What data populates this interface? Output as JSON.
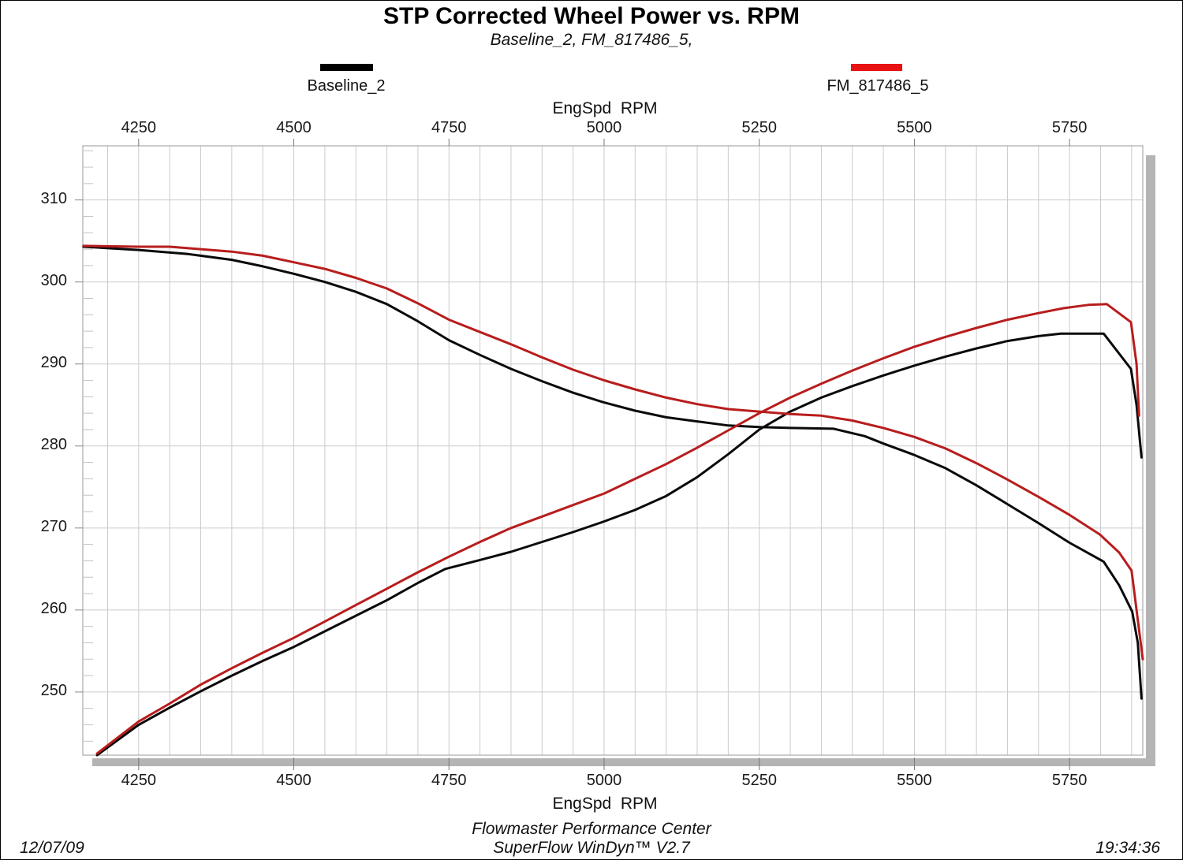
{
  "header": {
    "title": "STP Corrected Wheel Power vs. RPM",
    "subtitle": "Baseline_2, FM_817486_5,"
  },
  "legend": [
    {
      "label": "Baseline_2",
      "color": "#000000"
    },
    {
      "label": "FM_817486_5",
      "color": "#e81212"
    }
  ],
  "footer": {
    "facility": "Flowmaster Performance Center",
    "software": "SuperFlow WinDyn™ V2.7",
    "date": "12/07/09",
    "time": "19:34:36"
  },
  "chart_data": {
    "type": "line",
    "title": "STP Corrected Wheel Power vs. RPM",
    "subtitle": "Baseline_2, FM_817486_5,",
    "grid": true,
    "legend_position": "top",
    "x_axis": {
      "label": "EngSpd  RPM",
      "min": 4160,
      "max": 5868,
      "major_ticks": [
        4250,
        4500,
        4750,
        5000,
        5250,
        5500,
        5750
      ],
      "minor_grid_step": 50
    },
    "y_axis": {
      "label": "",
      "min": 242.3,
      "max": 316.6,
      "major_ticks": [
        250,
        260,
        270,
        280,
        290,
        300,
        310
      ],
      "minor_tick_step": 2
    },
    "series": [
      {
        "name": "Baseline_2",
        "color": "#0a0a0a",
        "curves": {
          "falling": [
            [
              4161,
              304.3
            ],
            [
              4250,
              303.9
            ],
            [
              4330,
              303.4
            ],
            [
              4400,
              302.7
            ],
            [
              4450,
              301.9
            ],
            [
              4500,
              301.0
            ],
            [
              4550,
              300.0
            ],
            [
              4600,
              298.8
            ],
            [
              4650,
              297.3
            ],
            [
              4700,
              295.2
            ],
            [
              4750,
              292.9
            ],
            [
              4800,
              291.1
            ],
            [
              4850,
              289.4
            ],
            [
              4900,
              287.9
            ],
            [
              4950,
              286.5
            ],
            [
              5000,
              285.3
            ],
            [
              5050,
              284.3
            ],
            [
              5100,
              283.5
            ],
            [
              5150,
              283.0
            ],
            [
              5200,
              282.5
            ],
            [
              5250,
              282.3
            ],
            [
              5300,
              282.2
            ],
            [
              5370,
              282.1
            ],
            [
              5420,
              281.2
            ],
            [
              5450,
              280.3
            ],
            [
              5500,
              278.9
            ],
            [
              5550,
              277.3
            ],
            [
              5600,
              275.2
            ],
            [
              5650,
              272.9
            ],
            [
              5700,
              270.6
            ],
            [
              5750,
              268.2
            ],
            [
              5805,
              265.9
            ],
            [
              5830,
              263.0
            ],
            [
              5851,
              259.8
            ],
            [
              5860,
              256.0
            ],
            [
              5866,
              249.2
            ]
          ],
          "rising": [
            [
              4183,
              242.3
            ],
            [
              4250,
              246.0
            ],
            [
              4300,
              248.1
            ],
            [
              4350,
              250.1
            ],
            [
              4400,
              252.0
            ],
            [
              4450,
              253.8
            ],
            [
              4500,
              255.5
            ],
            [
              4550,
              257.4
            ],
            [
              4600,
              259.3
            ],
            [
              4650,
              261.2
            ],
            [
              4700,
              263.3
            ],
            [
              4744,
              265.0
            ],
            [
              4800,
              266.1
            ],
            [
              4850,
              267.1
            ],
            [
              4900,
              268.3
            ],
            [
              4950,
              269.5
            ],
            [
              5000,
              270.8
            ],
            [
              5050,
              272.2
            ],
            [
              5100,
              273.9
            ],
            [
              5150,
              276.2
            ],
            [
              5200,
              279.0
            ],
            [
              5250,
              282.0
            ],
            [
              5300,
              284.2
            ],
            [
              5350,
              285.9
            ],
            [
              5400,
              287.3
            ],
            [
              5450,
              288.6
            ],
            [
              5500,
              289.8
            ],
            [
              5550,
              290.9
            ],
            [
              5600,
              291.9
            ],
            [
              5650,
              292.8
            ],
            [
              5700,
              293.4
            ],
            [
              5736,
              293.7
            ],
            [
              5805,
              293.7
            ],
            [
              5849,
              289.4
            ],
            [
              5858,
              285.0
            ],
            [
              5866,
              278.6
            ]
          ]
        }
      },
      {
        "name": "FM_817486_5",
        "color": "#b81d1d",
        "curves": {
          "falling": [
            [
              4161,
              304.4
            ],
            [
              4250,
              304.3
            ],
            [
              4300,
              304.3
            ],
            [
              4350,
              304.0
            ],
            [
              4400,
              303.7
            ],
            [
              4450,
              303.2
            ],
            [
              4500,
              302.4
            ],
            [
              4550,
              301.6
            ],
            [
              4600,
              300.5
            ],
            [
              4650,
              299.2
            ],
            [
              4700,
              297.4
            ],
            [
              4750,
              295.4
            ],
            [
              4800,
              293.9
            ],
            [
              4850,
              292.4
            ],
            [
              4900,
              290.8
            ],
            [
              4950,
              289.3
            ],
            [
              5000,
              288.0
            ],
            [
              5050,
              286.9
            ],
            [
              5100,
              285.9
            ],
            [
              5150,
              285.1
            ],
            [
              5200,
              284.5
            ],
            [
              5250,
              284.2
            ],
            [
              5300,
              283.9
            ],
            [
              5350,
              283.7
            ],
            [
              5400,
              283.1
            ],
            [
              5450,
              282.2
            ],
            [
              5500,
              281.1
            ],
            [
              5550,
              279.7
            ],
            [
              5600,
              277.9
            ],
            [
              5650,
              275.9
            ],
            [
              5700,
              273.8
            ],
            [
              5750,
              271.6
            ],
            [
              5799,
              269.2
            ],
            [
              5830,
              267.0
            ],
            [
              5850,
              264.8
            ],
            [
              5868,
              254.0
            ]
          ],
          "rising": [
            [
              4183,
              242.5
            ],
            [
              4250,
              246.4
            ],
            [
              4300,
              248.6
            ],
            [
              4350,
              250.9
            ],
            [
              4400,
              252.9
            ],
            [
              4450,
              254.8
            ],
            [
              4500,
              256.6
            ],
            [
              4550,
              258.6
            ],
            [
              4600,
              260.6
            ],
            [
              4650,
              262.6
            ],
            [
              4700,
              264.6
            ],
            [
              4750,
              266.5
            ],
            [
              4800,
              268.3
            ],
            [
              4850,
              270.0
            ],
            [
              4900,
              271.4
            ],
            [
              4950,
              272.8
            ],
            [
              5000,
              274.2
            ],
            [
              5050,
              276.0
            ],
            [
              5100,
              277.8
            ],
            [
              5150,
              279.8
            ],
            [
              5200,
              281.9
            ],
            [
              5250,
              284.0
            ],
            [
              5300,
              285.9
            ],
            [
              5350,
              287.6
            ],
            [
              5400,
              289.2
            ],
            [
              5450,
              290.7
            ],
            [
              5500,
              292.1
            ],
            [
              5550,
              293.3
            ],
            [
              5600,
              294.4
            ],
            [
              5650,
              295.4
            ],
            [
              5700,
              296.2
            ],
            [
              5740,
              296.8
            ],
            [
              5780,
              297.2
            ],
            [
              5810,
              297.3
            ],
            [
              5849,
              295.1
            ],
            [
              5858,
              290.0
            ],
            [
              5862,
              283.7
            ]
          ]
        }
      }
    ]
  }
}
